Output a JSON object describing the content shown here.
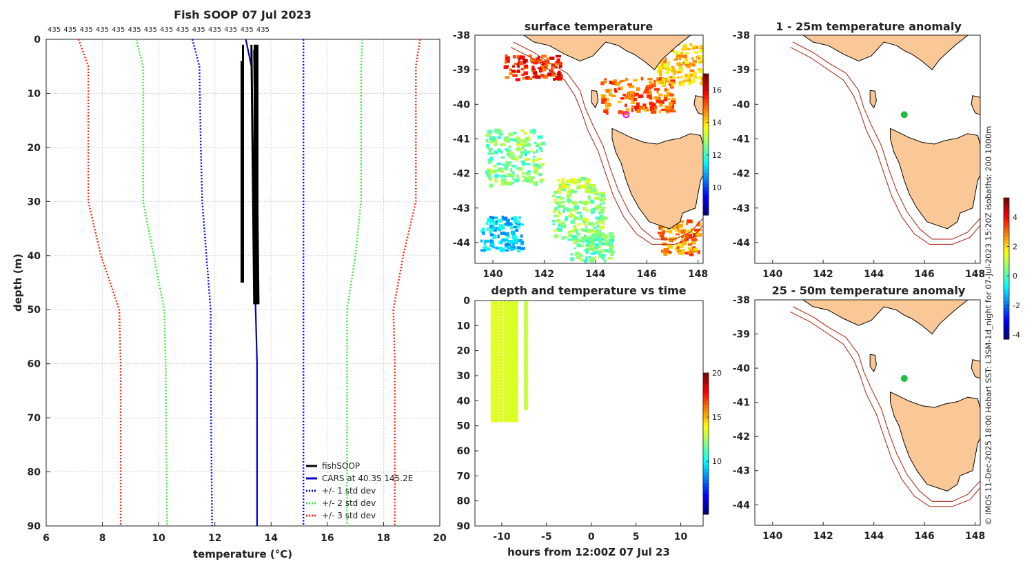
{
  "figure": {
    "credit": "© IMOS 11-Dec-2025 18:00 Hobart SST: L3SM-1d_night for 07-Jul-2023 15:20Z isobaths: 200  1000m"
  },
  "colors": {
    "land": "#f9c896",
    "coast": "#000000",
    "isobath": "#b03020",
    "profile": "#000000",
    "cars": "#0000cc",
    "std1": "#0000ff",
    "std2": "#33ee33",
    "std3": "#ff2200",
    "marker": "#ff00ff",
    "anomaly_dot": "#22bb44",
    "drop_dot": "#33dd00"
  },
  "chart_data": [
    {
      "id": "profile",
      "type": "line",
      "title": "Fish SOOP 07 Jul 2023",
      "xlabel": "temperature (°C)",
      "ylabel": "depth (m)",
      "xlim": [
        6,
        20
      ],
      "ylim": [
        0,
        90
      ],
      "xticks": [
        "6",
        "8",
        "10",
        "12",
        "14",
        "16",
        "18",
        "20"
      ],
      "yticks": [
        "0",
        "10",
        "20",
        "30",
        "40",
        "50",
        "60",
        "70",
        "80",
        "90"
      ],
      "top_labels": [
        "435",
        "435",
        "435",
        "435",
        "435",
        "435",
        "435",
        "435",
        "435",
        "435",
        "435",
        "435",
        "435",
        "435"
      ],
      "legend": {
        "position": "bottom-right",
        "entries": [
          "fishSOOP",
          "CARS at 40.3S 145.2E",
          "+/- 1 std dev",
          "+/- 2 std dev",
          "+/- 3 std dev"
        ]
      },
      "series": [
        {
          "name": "CARS at 40.3S 145.2E",
          "style": "solid",
          "points": [
            [
              13.1,
              0
            ],
            [
              13.3,
              5
            ],
            [
              13.35,
              20
            ],
            [
              13.4,
              40
            ],
            [
              13.45,
              50
            ],
            [
              13.5,
              60
            ],
            [
              13.5,
              90
            ]
          ]
        },
        {
          "name": "+1 std dev",
          "style": "dotted",
          "points": [
            [
              15.15,
              0
            ],
            [
              15.15,
              90
            ]
          ]
        },
        {
          "name": "-1 std dev",
          "style": "dotted",
          "points": [
            [
              11.2,
              0
            ],
            [
              11.45,
              5
            ],
            [
              11.5,
              20
            ],
            [
              11.55,
              30
            ],
            [
              11.7,
              40
            ],
            [
              11.85,
              50
            ],
            [
              11.85,
              60
            ],
            [
              11.9,
              90
            ]
          ]
        },
        {
          "name": "+2 std dev",
          "style": "dotted",
          "points": [
            [
              17.25,
              0
            ],
            [
              17.2,
              5
            ],
            [
              17.2,
              30
            ],
            [
              17.0,
              40
            ],
            [
              16.7,
              50
            ],
            [
              16.7,
              90
            ]
          ]
        },
        {
          "name": "-2 std dev",
          "style": "dotted",
          "points": [
            [
              9.2,
              0
            ],
            [
              9.45,
              5
            ],
            [
              9.45,
              30
            ],
            [
              9.75,
              38
            ],
            [
              10.2,
              50
            ],
            [
              10.25,
              60
            ],
            [
              10.3,
              90
            ]
          ]
        },
        {
          "name": "+3 std dev",
          "style": "dotted",
          "points": [
            [
              19.3,
              0
            ],
            [
              19.15,
              5
            ],
            [
              19.15,
              30
            ],
            [
              18.7,
              40
            ],
            [
              18.35,
              50
            ],
            [
              18.4,
              60
            ],
            [
              18.4,
              90
            ]
          ]
        },
        {
          "name": "-3 std dev",
          "style": "dotted",
          "points": [
            [
              7.15,
              0
            ],
            [
              7.5,
              5
            ],
            [
              7.5,
              30
            ],
            [
              7.95,
              40
            ],
            [
              8.6,
              50
            ],
            [
              8.65,
              60
            ],
            [
              8.65,
              90
            ]
          ]
        }
      ],
      "drops": [
        [
          [
            12.95,
            4
          ],
          [
            12.95,
            45
          ]
        ],
        [
          [
            13.0,
            1
          ],
          [
            13.0,
            45
          ]
        ],
        [
          [
            13.3,
            1
          ],
          [
            13.4,
            49
          ]
        ],
        [
          [
            13.4,
            2
          ],
          [
            13.5,
            49
          ]
        ],
        [
          [
            13.45,
            1
          ],
          [
            13.55,
            49
          ]
        ]
      ]
    },
    {
      "id": "surface",
      "type": "heatmap",
      "title": "surface temperature",
      "xlim": [
        139.3,
        148.2
      ],
      "ylim": [
        -44.6,
        -38
      ],
      "xticks": [
        140,
        142,
        144,
        146,
        148
      ],
      "yticks": [
        -38,
        -39,
        -40,
        -41,
        -42,
        -43,
        -44
      ],
      "colorbar": {
        "range": [
          8.3,
          17
        ],
        "ticks": [
          "10",
          "12",
          "14",
          "16"
        ]
      },
      "marker": {
        "lon": 145.2,
        "lat": -40.3
      },
      "patches": [
        {
          "lon": 141.5,
          "lat": -38.9,
          "sx": 1.1,
          "sy": 0.35,
          "t": 15.6
        },
        {
          "lon": 145.6,
          "lat": -39.7,
          "sx": 1.4,
          "sy": 0.5,
          "t": 15.0
        },
        {
          "lon": 147.3,
          "lat": -38.8,
          "sx": 0.9,
          "sy": 0.6,
          "t": 14.2
        },
        {
          "lon": 140.8,
          "lat": -41.5,
          "sx": 1.1,
          "sy": 0.8,
          "t": 12.6
        },
        {
          "lon": 140.3,
          "lat": -43.7,
          "sx": 0.8,
          "sy": 0.5,
          "t": 11.2
        },
        {
          "lon": 143.3,
          "lat": -43.2,
          "sx": 1.0,
          "sy": 0.7,
          "t": 12.8
        },
        {
          "lon": 143.8,
          "lat": -44.1,
          "sx": 0.8,
          "sy": 0.4,
          "t": 12.4
        },
        {
          "lon": 143.2,
          "lat": -42.3,
          "sx": 0.7,
          "sy": 0.2,
          "t": 13.2
        },
        {
          "lon": 147.2,
          "lat": -43.8,
          "sx": 0.8,
          "sy": 0.5,
          "t": 14.8
        }
      ]
    },
    {
      "id": "timeseries",
      "type": "scatter",
      "title": "depth and temperature vs time",
      "xlabel": "hours from 12:00Z 07 Jul 23",
      "xlim": [
        -13,
        12.5
      ],
      "ylim": [
        0,
        90
      ],
      "xticks": [
        "-10",
        "-5",
        "0",
        "5",
        "10"
      ],
      "yticks": [
        "0",
        "10",
        "20",
        "30",
        "40",
        "50",
        "60",
        "70",
        "80",
        "90"
      ],
      "colorbar": {
        "range": [
          4,
          20
        ],
        "ticks": [
          "10",
          "15",
          "20"
        ]
      },
      "columns": [
        {
          "hours": -11.0,
          "max_depth": 48,
          "temp": 13.5
        },
        {
          "hours": -10.6,
          "max_depth": 48,
          "temp": 13.5
        },
        {
          "hours": -10.1,
          "max_depth": 49,
          "temp": 13.5
        },
        {
          "hours": -9.6,
          "max_depth": 49,
          "temp": 13.4
        },
        {
          "hours": -9.2,
          "max_depth": 49,
          "temp": 13.4
        },
        {
          "hours": -8.8,
          "max_depth": 49,
          "temp": 13.4
        },
        {
          "hours": -8.4,
          "max_depth": 49,
          "temp": 13.4
        },
        {
          "hours": -7.3,
          "max_depth": 44,
          "temp": 13.1
        }
      ]
    },
    {
      "id": "anom1",
      "type": "map",
      "title": "1 - 25m temperature anomaly",
      "xlim": [
        139.3,
        148.2
      ],
      "ylim": [
        -44.6,
        -38
      ],
      "xticks": [
        140,
        142,
        144,
        146,
        148
      ],
      "yticks": [
        -38,
        -39,
        -40,
        -41,
        -42,
        -43,
        -44
      ],
      "colorbar": {
        "range": [
          -4.3,
          5.3
        ],
        "ticks": [
          "-4",
          "-2",
          "0",
          "2",
          "4"
        ]
      },
      "obs": {
        "lon": 145.2,
        "lat": -40.3,
        "anomaly": 0.1
      }
    },
    {
      "id": "anom2",
      "type": "map",
      "title": "25 - 50m temperature anomaly",
      "xlim": [
        139.3,
        148.2
      ],
      "ylim": [
        -44.6,
        -38
      ],
      "xticks": [
        140,
        142,
        144,
        146,
        148
      ],
      "yticks": [
        -38,
        -39,
        -40,
        -41,
        -42,
        -43,
        -44
      ],
      "obs": {
        "lon": 145.2,
        "lat": -40.3,
        "anomaly": 0.1
      }
    }
  ]
}
